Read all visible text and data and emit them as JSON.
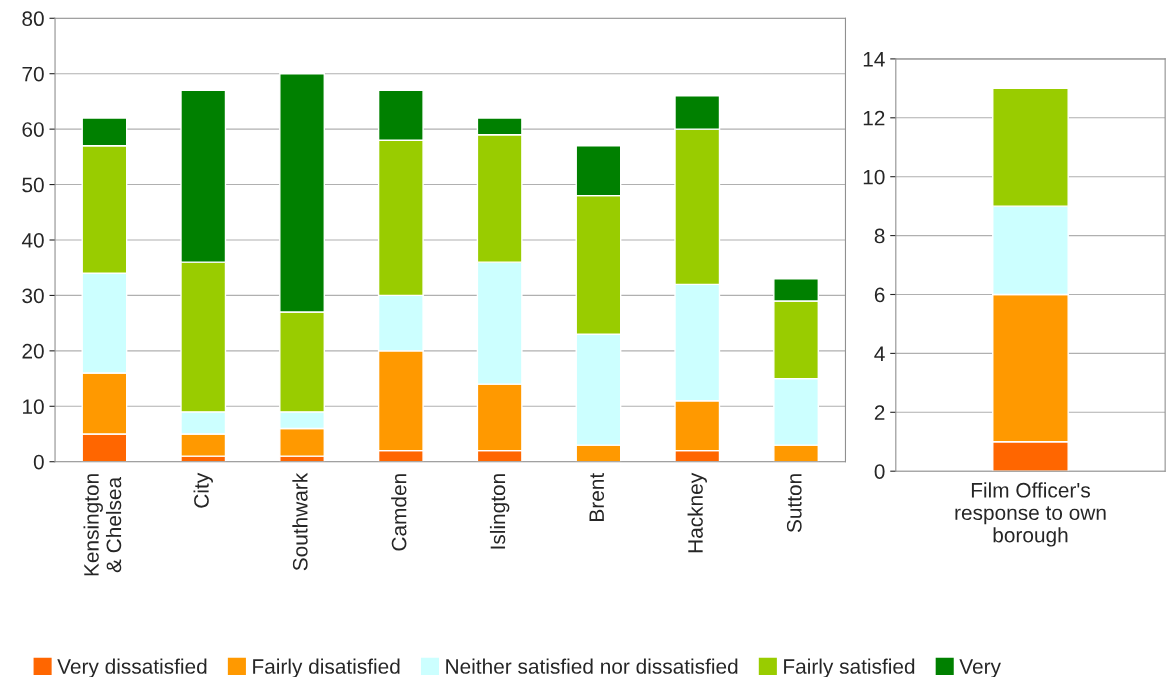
{
  "chart_data": [
    {
      "type": "bar",
      "stacked": true,
      "categories": [
        "Kensington\n& Chelsea",
        "City",
        "Southwark",
        "Camden",
        "Islington",
        "Brent",
        "Hackney",
        "Sutton"
      ],
      "series": [
        {
          "name": "Very dissatisfied",
          "color": "#ff6600",
          "values": [
            5,
            1,
            1,
            2,
            2,
            0,
            2,
            0
          ]
        },
        {
          "name": "Fairly disatisfied",
          "color": "#ff9900",
          "values": [
            11,
            4,
            5,
            18,
            12,
            3,
            9,
            3
          ]
        },
        {
          "name": "Neither satisfied nor dissatisfied",
          "color": "#ccffff",
          "values": [
            18,
            4,
            3,
            10,
            22,
            20,
            21,
            12
          ]
        },
        {
          "name": "Fairly satisfied",
          "color": "#99cc00",
          "values": [
            23,
            27,
            18,
            28,
            23,
            25,
            28,
            14
          ]
        },
        {
          "name": "Very",
          "color": "#008000",
          "values": [
            5,
            31,
            43,
            9,
            3,
            9,
            6,
            4
          ]
        }
      ],
      "ylim": [
        0,
        80
      ],
      "yticks": [
        0,
        10,
        20,
        30,
        40,
        50,
        60,
        70,
        80
      ],
      "grid": "y",
      "legend": "bottom"
    },
    {
      "type": "bar",
      "stacked": true,
      "categories": [
        "Film Officer's\nresponse to own\nborough"
      ],
      "series": [
        {
          "color": "#ff6600",
          "values": [
            1
          ]
        },
        {
          "color": "#ff9900",
          "values": [
            5
          ]
        },
        {
          "color": "#ccffff",
          "values": [
            3
          ]
        },
        {
          "color": "#99cc00",
          "values": [
            4
          ]
        }
      ],
      "ylim": [
        0,
        14
      ],
      "yticks": [
        0,
        2,
        4,
        6,
        8,
        10,
        12,
        14
      ],
      "grid": "y"
    }
  ]
}
